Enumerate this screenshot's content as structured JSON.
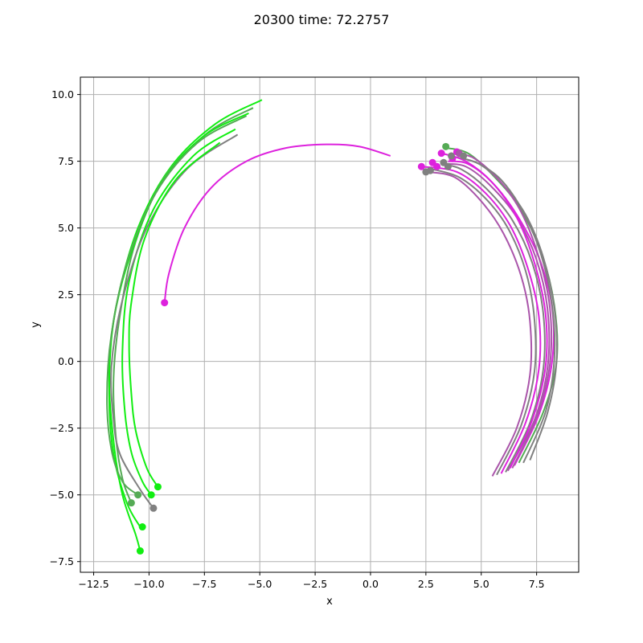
{
  "chart_data": {
    "type": "line",
    "title": "20300 time: 72.2757",
    "xlabel": "x",
    "ylabel": "y",
    "xlim": [
      -13.1,
      9.4
    ],
    "ylim": [
      -7.9,
      10.65
    ],
    "grid": true,
    "legend": "none",
    "xticks": [
      -12.5,
      -10.0,
      -7.5,
      -5.0,
      -2.5,
      0.0,
      2.5,
      5.0,
      7.5
    ],
    "xtick_labels": [
      "−12.5",
      "−10.0",
      "−7.5",
      "−5.0",
      "−2.5",
      "0.0",
      "2.5",
      "5.0",
      "7.5"
    ],
    "yticks": [
      -7.5,
      -5.0,
      -2.5,
      0.0,
      2.5,
      5.0,
      7.5,
      10.0
    ],
    "ytick_labels": [
      "−7.5",
      "−5.0",
      "−2.5",
      "0.0",
      "2.5",
      "5.0",
      "7.5",
      "10.0"
    ],
    "colors": {
      "green": "#11ee11",
      "gray_green": "#55aa55",
      "magenta": "#dd22dd",
      "gray_magenta": "#aa55aa",
      "gray": "#808080"
    },
    "series": [
      {
        "color": "#11ee11",
        "x": [
          -4.9,
          -7.0,
          -9.0,
          -10.5,
          -11.5,
          -11.8,
          -11.6,
          -11.2,
          -10.6,
          -10.4
        ],
        "y": [
          9.8,
          8.9,
          7.3,
          5.0,
          2.0,
          -0.5,
          -3.0,
          -5.0,
          -6.5,
          -7.1
        ]
      },
      {
        "color": "#55aa55",
        "x": [
          -5.3,
          -7.3,
          -9.3,
          -10.6,
          -11.3,
          -11.6,
          -11.5,
          -11.2,
          -10.8
        ],
        "y": [
          9.5,
          8.6,
          6.9,
          4.5,
          1.8,
          -0.6,
          -2.8,
          -4.4,
          -5.3
        ]
      },
      {
        "color": "#11ee11",
        "x": [
          -5.5,
          -7.6,
          -9.5,
          -10.8,
          -11.6,
          -11.8,
          -11.6,
          -11.0,
          -10.4
        ],
        "y": [
          9.3,
          8.4,
          6.6,
          4.1,
          1.5,
          -1.2,
          -3.5,
          -5.3,
          -6.2
        ]
      },
      {
        "color": "#55aa55",
        "x": [
          -5.6,
          -7.8,
          -9.7,
          -11.0,
          -11.7,
          -11.9,
          -11.7,
          -11.2,
          -10.5
        ],
        "y": [
          9.2,
          8.2,
          6.3,
          3.7,
          1.0,
          -1.4,
          -3.3,
          -4.5,
          -5.0
        ]
      },
      {
        "color": "#11ee11",
        "x": [
          -6.1,
          -8.0,
          -9.8,
          -10.9,
          -11.2,
          -11.1,
          -10.8,
          -10.3,
          -9.9
        ],
        "y": [
          8.7,
          7.7,
          5.7,
          3.0,
          0.4,
          -1.8,
          -3.4,
          -4.5,
          -5.0
        ]
      },
      {
        "color": "#808080",
        "x": [
          -6.0,
          -8.3,
          -10.1,
          -11.2,
          -11.7,
          -11.6,
          -11.3,
          -10.4,
          -9.8
        ],
        "y": [
          8.5,
          7.2,
          5.0,
          2.3,
          -0.2,
          -2.2,
          -3.5,
          -4.8,
          -5.5
        ]
      },
      {
        "color": "#11ee11",
        "x": [
          -6.8,
          -8.8,
          -10.2,
          -10.8,
          -10.9,
          -10.8,
          -10.6,
          -10.1,
          -9.6
        ],
        "y": [
          8.2,
          6.8,
          4.6,
          2.2,
          0.6,
          -1.2,
          -2.6,
          -4.0,
          -4.7
        ]
      },
      {
        "color": "#dd22dd",
        "x": [
          0.9,
          -0.5,
          -2.0,
          -3.8,
          -5.6,
          -7.2,
          -8.4,
          -9.1,
          -9.3
        ],
        "y": [
          7.7,
          8.05,
          8.13,
          8.0,
          7.5,
          6.5,
          5.0,
          3.3,
          2.2
        ]
      },
      {
        "color": "#aa55aa",
        "x": [
          5.5,
          6.6,
          7.2,
          7.2,
          6.8,
          6.0,
          5.0,
          3.8,
          2.6
        ],
        "y": [
          -4.3,
          -2.5,
          -0.5,
          1.5,
          3.2,
          4.8,
          6.0,
          6.9,
          7.1
        ]
      },
      {
        "color": "#808080",
        "x": [
          5.7,
          6.8,
          7.4,
          7.4,
          7.0,
          6.2,
          5.2,
          4.0,
          2.8
        ],
        "y": [
          -4.25,
          -2.4,
          -0.4,
          1.6,
          3.4,
          5.0,
          6.1,
          6.9,
          7.2
        ]
      },
      {
        "color": "#dd22dd",
        "x": [
          5.9,
          7.0,
          7.6,
          7.6,
          7.1,
          6.3,
          5.2,
          3.9,
          2.3
        ],
        "y": [
          -4.2,
          -2.3,
          -0.3,
          1.7,
          3.5,
          5.1,
          6.3,
          7.1,
          7.3
        ]
      },
      {
        "color": "#808080",
        "x": [
          6.1,
          7.2,
          7.8,
          7.8,
          7.3,
          6.4,
          5.2,
          4.1,
          3.2
        ],
        "y": [
          -4.15,
          -2.3,
          -0.3,
          1.8,
          3.7,
          5.3,
          6.5,
          7.2,
          7.4
        ]
      },
      {
        "color": "#aa55aa",
        "x": [
          6.2,
          7.4,
          8.0,
          8.0,
          7.5,
          6.6,
          5.4,
          4.3,
          3.3
        ],
        "y": [
          -4.1,
          -2.2,
          -0.2,
          1.9,
          3.8,
          5.4,
          6.6,
          7.3,
          7.4
        ]
      },
      {
        "color": "#dd22dd",
        "x": [
          6.5,
          7.6,
          8.2,
          8.2,
          7.6,
          6.6,
          5.5,
          4.4,
          3.5
        ],
        "y": [
          -3.9,
          -2.0,
          0.0,
          2.0,
          3.9,
          5.5,
          6.7,
          7.4,
          7.5
        ]
      },
      {
        "color": "#55aa55",
        "x": [
          6.7,
          7.8,
          8.4,
          8.3,
          7.7,
          6.7,
          5.5,
          4.4,
          3.4
        ],
        "y": [
          -3.8,
          -1.9,
          0.0,
          2.1,
          4.1,
          5.8,
          7.0,
          7.8,
          8.0
        ]
      },
      {
        "color": "#808080",
        "x": [
          7.2,
          8.0,
          8.4,
          8.3,
          7.8,
          7.0,
          6.0,
          4.9,
          3.6
        ],
        "y": [
          -3.7,
          -1.9,
          0.0,
          2.0,
          3.9,
          5.5,
          6.6,
          7.4,
          7.7
        ]
      },
      {
        "color": "#aa55aa",
        "x": [
          6.4,
          7.5,
          8.1,
          8.1,
          7.6,
          6.8,
          5.8,
          4.7,
          3.9
        ],
        "y": [
          -4.0,
          -2.1,
          -0.1,
          2.0,
          3.9,
          5.6,
          6.8,
          7.6,
          7.8
        ]
      },
      {
        "color": "#dd22dd",
        "x": [
          6.3,
          7.3,
          7.9,
          7.9,
          7.4,
          6.6,
          5.5,
          4.3,
          3.2
        ],
        "y": [
          -4.0,
          -2.2,
          -0.2,
          1.8,
          3.7,
          5.4,
          6.7,
          7.5,
          7.8
        ]
      },
      {
        "color": "#808080",
        "x": [
          6.9,
          7.9,
          8.3,
          8.2,
          7.7,
          6.9,
          5.9,
          4.9,
          4.2
        ],
        "y": [
          -3.8,
          -1.9,
          0.1,
          2.1,
          4.0,
          5.6,
          6.8,
          7.4,
          7.6
        ]
      }
    ],
    "points": [
      {
        "x": -10.4,
        "y": -7.1,
        "color": "#11ee11"
      },
      {
        "x": -10.8,
        "y": -5.3,
        "color": "#55aa55"
      },
      {
        "x": -10.3,
        "y": -6.2,
        "color": "#11ee11"
      },
      {
        "x": -10.5,
        "y": -5.0,
        "color": "#55aa55"
      },
      {
        "x": -9.9,
        "y": -5.0,
        "color": "#11ee11"
      },
      {
        "x": -9.8,
        "y": -5.5,
        "color": "#808080"
      },
      {
        "x": -9.6,
        "y": -4.7,
        "color": "#11ee11"
      },
      {
        "x": -9.3,
        "y": 2.2,
        "color": "#dd22dd"
      },
      {
        "x": 2.3,
        "y": 7.3,
        "color": "#dd22dd"
      },
      {
        "x": 2.5,
        "y": 7.1,
        "color": "#808080"
      },
      {
        "x": 2.7,
        "y": 7.15,
        "color": "#808080"
      },
      {
        "x": 2.8,
        "y": 7.45,
        "color": "#dd22dd"
      },
      {
        "x": 3.0,
        "y": 7.3,
        "color": "#dd22dd"
      },
      {
        "x": 3.2,
        "y": 7.8,
        "color": "#dd22dd"
      },
      {
        "x": 3.3,
        "y": 7.45,
        "color": "#808080"
      },
      {
        "x": 3.4,
        "y": 8.05,
        "color": "#55aa55"
      },
      {
        "x": 3.5,
        "y": 7.3,
        "color": "#808080"
      },
      {
        "x": 3.7,
        "y": 7.6,
        "color": "#dd22dd"
      },
      {
        "x": 3.65,
        "y": 7.7,
        "color": "#808080"
      },
      {
        "x": 3.9,
        "y": 7.85,
        "color": "#dd22dd"
      },
      {
        "x": 4.0,
        "y": 7.8,
        "color": "#aa55aa"
      },
      {
        "x": 4.2,
        "y": 7.7,
        "color": "#808080"
      }
    ]
  }
}
